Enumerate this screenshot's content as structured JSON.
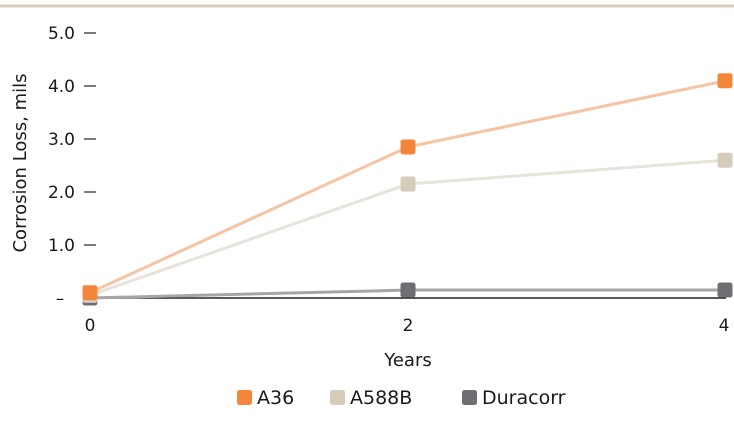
{
  "chart_data": {
    "type": "line",
    "title": "",
    "xlabel": "Years",
    "ylabel": "Corrosion Loss, mils",
    "x": [
      0,
      2,
      4
    ],
    "x_tick_labels": [
      "0",
      "2",
      "4"
    ],
    "xlim": [
      0,
      4
    ],
    "ylim": [
      0,
      5
    ],
    "y_ticks": [
      0,
      1,
      2,
      3,
      4,
      5
    ],
    "y_tick_labels": [
      "–",
      "1.0",
      "2.0",
      "3.0",
      "4.0",
      "5.0"
    ],
    "grid": false,
    "legend_position": "bottom",
    "series": [
      {
        "name": "A36",
        "values": [
          0.1,
          2.85,
          4.1
        ],
        "marker_color": "#f4863b",
        "line_color": "#f6c4a2"
      },
      {
        "name": "A588B",
        "values": [
          0.05,
          2.15,
          2.6
        ],
        "marker_color": "#d6ccbb",
        "line_color": "#e8e3da"
      },
      {
        "name": "Duracorr",
        "values": [
          0.0,
          0.15,
          0.15
        ],
        "marker_color": "#6e6e73",
        "line_color": "#a6a6a9"
      }
    ]
  },
  "colors": {
    "top_rule": "#d9cfbf",
    "axis": "#222222"
  }
}
